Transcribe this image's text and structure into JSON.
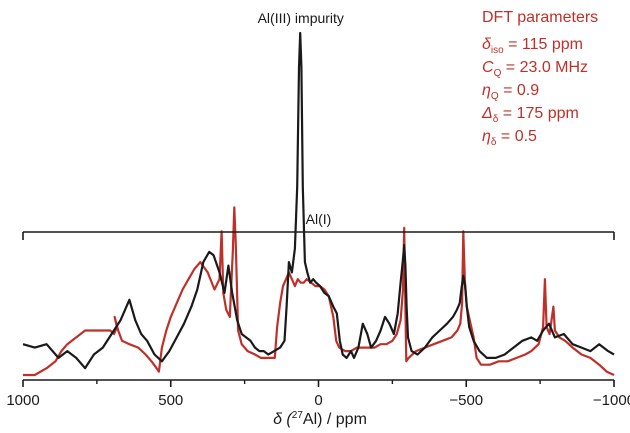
{
  "chart_data": {
    "type": "line",
    "xlabel_prefix": "δ (",
    "xlabel_sup": "27",
    "xlabel_suffix": "Al) / ppm",
    "xlim": [
      1000,
      -1000
    ],
    "x_reversed": true,
    "xticks": [
      1000,
      500,
      0,
      -500,
      -1000
    ],
    "xtick_labels": [
      "1000",
      "500",
      "0",
      "−500",
      "−1000"
    ],
    "ylim": [
      0,
      1
    ],
    "colors": {
      "experimental": "#1a1a1a",
      "simulation": "#c0302a",
      "annotation": "#c0302a",
      "axis": "#1a1a1a"
    },
    "annotations": {
      "peak_label": "Al(III) impurity",
      "range_label": "Al(I)",
      "range_x": [
        1000,
        -1000
      ]
    },
    "parameters": {
      "title": "DFT parameters",
      "lines": [
        {
          "sym": "δ",
          "sub": "iso",
          "rest": " = 115 ppm"
        },
        {
          "sym": "C",
          "sub": "Q",
          "rest": " = 23.0 MHz"
        },
        {
          "sym": "η",
          "sub": "Q",
          "rest": " = 0.9"
        },
        {
          "sym": "Δ",
          "sub": "δ",
          "rest": " = 175 ppm"
        },
        {
          "sym": "η",
          "sub": "δ",
          "rest": " = 0.5"
        }
      ]
    },
    "series": [
      {
        "key": "experimental",
        "points": [
          [
            1000,
            0.09
          ],
          [
            960,
            0.08
          ],
          [
            920,
            0.09
          ],
          [
            880,
            0.05
          ],
          [
            850,
            0.07
          ],
          [
            820,
            0.05
          ],
          [
            790,
            0.02
          ],
          [
            760,
            0.06
          ],
          [
            730,
            0.08
          ],
          [
            700,
            0.12
          ],
          [
            670,
            0.16
          ],
          [
            640,
            0.22
          ],
          [
            620,
            0.16
          ],
          [
            600,
            0.12
          ],
          [
            580,
            0.1
          ],
          [
            555,
            0.06
          ],
          [
            530,
            0.04
          ],
          [
            505,
            0.07
          ],
          [
            480,
            0.11
          ],
          [
            455,
            0.15
          ],
          [
            430,
            0.2
          ],
          [
            410,
            0.25
          ],
          [
            390,
            0.33
          ],
          [
            370,
            0.36
          ],
          [
            355,
            0.35
          ],
          [
            335,
            0.3
          ],
          [
            318,
            0.24
          ],
          [
            305,
            0.32
          ],
          [
            292,
            0.24
          ],
          [
            275,
            0.16
          ],
          [
            260,
            0.12
          ],
          [
            245,
            0.11
          ],
          [
            230,
            0.1
          ],
          [
            215,
            0.08
          ],
          [
            200,
            0.07
          ],
          [
            185,
            0.07
          ],
          [
            170,
            0.06
          ],
          [
            150,
            0.07
          ],
          [
            130,
            0.08
          ],
          [
            115,
            0.1
          ],
          [
            108,
            0.2
          ],
          [
            100,
            0.33
          ],
          [
            90,
            0.3
          ],
          [
            80,
            0.37
          ],
          [
            72,
            0.55
          ],
          [
            66,
            0.9
          ],
          [
            62,
            1.0
          ],
          [
            58,
            0.9
          ],
          [
            53,
            0.55
          ],
          [
            46,
            0.33
          ],
          [
            38,
            0.3
          ],
          [
            28,
            0.27
          ],
          [
            18,
            0.28
          ],
          [
            8,
            0.27
          ],
          [
            -5,
            0.26
          ],
          [
            -20,
            0.24
          ],
          [
            -35,
            0.23
          ],
          [
            -50,
            0.2
          ],
          [
            -62,
            0.18
          ],
          [
            -72,
            0.1
          ],
          [
            -82,
            0.06
          ],
          [
            -95,
            0.05
          ],
          [
            -110,
            0.07
          ],
          [
            -120,
            0.05
          ],
          [
            -135,
            0.08
          ],
          [
            -150,
            0.15
          ],
          [
            -165,
            0.12
          ],
          [
            -178,
            0.08
          ],
          [
            -195,
            0.1
          ],
          [
            -210,
            0.13
          ],
          [
            -225,
            0.17
          ],
          [
            -240,
            0.15
          ],
          [
            -255,
            0.12
          ],
          [
            -268,
            0.18
          ],
          [
            -278,
            0.27
          ],
          [
            -285,
            0.33
          ],
          [
            -290,
            0.38
          ],
          [
            -294,
            0.32
          ],
          [
            -298,
            0.2
          ],
          [
            -303,
            0.11
          ],
          [
            -315,
            0.07
          ],
          [
            -335,
            0.06
          ],
          [
            -360,
            0.08
          ],
          [
            -385,
            0.11
          ],
          [
            -410,
            0.13
          ],
          [
            -435,
            0.15
          ],
          [
            -455,
            0.17
          ],
          [
            -468,
            0.19
          ],
          [
            -478,
            0.21
          ],
          [
            -485,
            0.26
          ],
          [
            -490,
            0.29
          ],
          [
            -496,
            0.26
          ],
          [
            -502,
            0.2
          ],
          [
            -510,
            0.14
          ],
          [
            -525,
            0.1
          ],
          [
            -545,
            0.07
          ],
          [
            -570,
            0.05
          ],
          [
            -600,
            0.05
          ],
          [
            -630,
            0.06
          ],
          [
            -660,
            0.08
          ],
          [
            -690,
            0.1
          ],
          [
            -720,
            0.11
          ],
          [
            -740,
            0.1
          ],
          [
            -760,
            0.13
          ],
          [
            -780,
            0.15
          ],
          [
            -800,
            0.11
          ],
          [
            -830,
            0.12
          ],
          [
            -860,
            0.09
          ],
          [
            -890,
            0.08
          ],
          [
            -920,
            0.07
          ],
          [
            -950,
            0.09
          ],
          [
            -980,
            0.07
          ],
          [
            -1000,
            0.06
          ]
        ]
      },
      {
        "key": "simulation",
        "points": [
          [
            1000,
            0.0
          ],
          [
            960,
            0.0
          ],
          [
            920,
            0.02
          ],
          [
            890,
            0.04
          ],
          [
            870,
            0.07
          ],
          [
            850,
            0.09
          ],
          [
            820,
            0.11
          ],
          [
            790,
            0.13
          ],
          [
            760,
            0.13
          ],
          [
            730,
            0.13
          ],
          [
            705,
            0.13
          ],
          [
            692,
            0.12
          ],
          [
            682,
            0.14
          ],
          [
            690,
            0.17
          ],
          [
            678,
            0.13
          ],
          [
            665,
            0.1
          ],
          [
            640,
            0.09
          ],
          [
            610,
            0.08
          ],
          [
            585,
            0.06
          ],
          [
            565,
            0.04
          ],
          [
            548,
            0.02
          ],
          [
            540,
            0.01
          ],
          [
            530,
            0.08
          ],
          [
            515,
            0.13
          ],
          [
            500,
            0.17
          ],
          [
            480,
            0.21
          ],
          [
            460,
            0.25
          ],
          [
            440,
            0.28
          ],
          [
            420,
            0.31
          ],
          [
            400,
            0.33
          ],
          [
            375,
            0.3
          ],
          [
            352,
            0.25
          ],
          [
            335,
            0.28
          ],
          [
            328,
            0.42
          ],
          [
            322,
            0.24
          ],
          [
            312,
            0.19
          ],
          [
            300,
            0.17
          ],
          [
            290,
            0.36
          ],
          [
            285,
            0.49
          ],
          [
            280,
            0.38
          ],
          [
            272,
            0.13
          ],
          [
            260,
            0.09
          ],
          [
            240,
            0.07
          ],
          [
            215,
            0.06
          ],
          [
            195,
            0.05
          ],
          [
            175,
            0.05
          ],
          [
            160,
            0.05
          ],
          [
            148,
            0.05
          ],
          [
            140,
            0.14
          ],
          [
            130,
            0.21
          ],
          [
            120,
            0.26
          ],
          [
            110,
            0.28
          ],
          [
            100,
            0.3
          ],
          [
            90,
            0.28
          ],
          [
            80,
            0.26
          ],
          [
            70,
            0.28
          ],
          [
            60,
            0.27
          ],
          [
            50,
            0.27
          ],
          [
            40,
            0.28
          ],
          [
            25,
            0.27
          ],
          [
            10,
            0.26
          ],
          [
            -5,
            0.26
          ],
          [
            -20,
            0.25
          ],
          [
            -35,
            0.23
          ],
          [
            -50,
            0.17
          ],
          [
            -60,
            0.1
          ],
          [
            -70,
            0.08
          ],
          [
            -90,
            0.07
          ],
          [
            -110,
            0.07
          ],
          [
            -130,
            0.08
          ],
          [
            -150,
            0.08
          ],
          [
            -170,
            0.08
          ],
          [
            -190,
            0.08
          ],
          [
            -210,
            0.09
          ],
          [
            -230,
            0.09
          ],
          [
            -250,
            0.1
          ],
          [
            -265,
            0.12
          ],
          [
            -278,
            0.16
          ],
          [
            -286,
            0.25
          ],
          [
            -290,
            0.43
          ],
          [
            -293,
            0.25
          ],
          [
            -297,
            0.04
          ],
          [
            -305,
            0.05
          ],
          [
            -330,
            0.07
          ],
          [
            -360,
            0.08
          ],
          [
            -390,
            0.09
          ],
          [
            -420,
            0.1
          ],
          [
            -450,
            0.11
          ],
          [
            -470,
            0.13
          ],
          [
            -480,
            0.15
          ],
          [
            -486,
            0.21
          ],
          [
            -490,
            0.42
          ],
          [
            -495,
            0.28
          ],
          [
            -502,
            0.2
          ],
          [
            -512,
            0.16
          ],
          [
            -525,
            0.11
          ],
          [
            -535,
            0.05
          ],
          [
            -550,
            0.03
          ],
          [
            -580,
            0.03
          ],
          [
            -610,
            0.04
          ],
          [
            -640,
            0.04
          ],
          [
            -670,
            0.05
          ],
          [
            -700,
            0.06
          ],
          [
            -720,
            0.07
          ],
          [
            -745,
            0.09
          ],
          [
            -760,
            0.14
          ],
          [
            -766,
            0.28
          ],
          [
            -772,
            0.14
          ],
          [
            -782,
            0.12
          ],
          [
            -795,
            0.2
          ],
          [
            -800,
            0.13
          ],
          [
            -815,
            0.11
          ],
          [
            -835,
            0.1
          ],
          [
            -860,
            0.08
          ],
          [
            -890,
            0.06
          ],
          [
            -920,
            0.05
          ],
          [
            -950,
            0.03
          ],
          [
            -975,
            0.01
          ],
          [
            -1000,
            0.0
          ]
        ]
      }
    ]
  }
}
